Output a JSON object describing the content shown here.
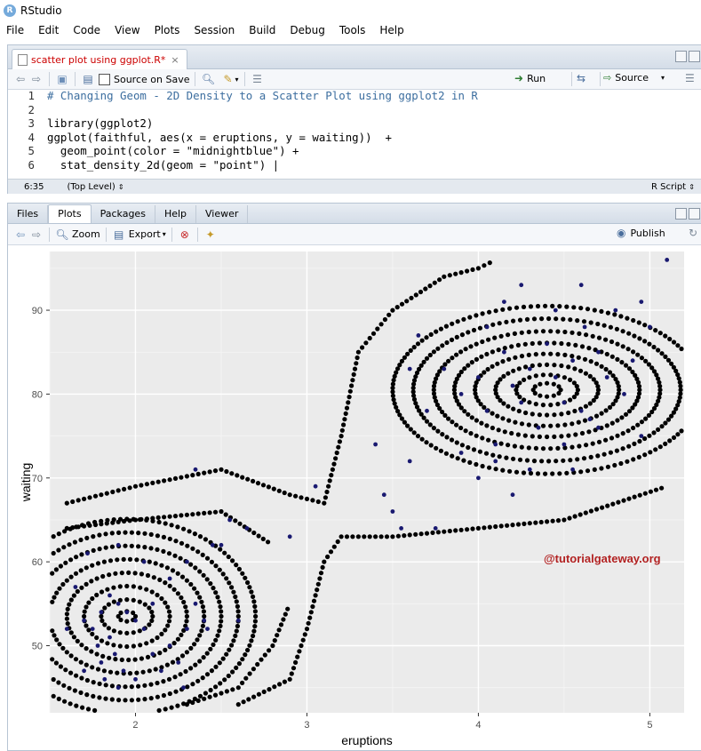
{
  "app": {
    "title": "RStudio"
  },
  "menu": [
    "File",
    "Edit",
    "Code",
    "View",
    "Plots",
    "Session",
    "Build",
    "Debug",
    "Tools",
    "Help"
  ],
  "editor": {
    "tab_label": "scatter plot using ggplot.R*",
    "source_on_save_label": "Source on Save",
    "run_label": "Run",
    "source_label": "Source",
    "lines": [
      {
        "num": "1",
        "text": "# Changing Geom - 2D Density to a Scatter Plot using ggplot2 in R",
        "comment": true
      },
      {
        "num": "2",
        "text": "",
        "comment": false
      },
      {
        "num": "3",
        "text": "library(ggplot2)",
        "comment": false
      },
      {
        "num": "4",
        "text": "ggplot(faithful, aes(x = eruptions, y = waiting))  +",
        "comment": false
      },
      {
        "num": "5",
        "text": "  geom_point(color = \"midnightblue\") +",
        "comment": false
      },
      {
        "num": "6",
        "text": "  stat_density_2d(geom = \"point\") |",
        "comment": false
      }
    ],
    "status_position": "6:35",
    "status_scope": "(Top Level)",
    "status_type": "R Script"
  },
  "plots_pane": {
    "tabs": [
      "Files",
      "Plots",
      "Packages",
      "Help",
      "Viewer"
    ],
    "active_tab": "Plots",
    "zoom_label": "Zoom",
    "export_label": "Export",
    "publish_label": "Publish"
  },
  "chart_data": {
    "type": "scatter",
    "xlabel": "eruptions",
    "ylabel": "waiting",
    "xlim": [
      1.5,
      5.2
    ],
    "ylim": [
      42,
      97
    ],
    "xticks": [
      "2",
      "3",
      "4",
      "5"
    ],
    "yticks": [
      "50",
      "60",
      "70",
      "80",
      "90"
    ],
    "panel_background": "#ebebeb",
    "grid": true,
    "point_color": "#191970",
    "density_point_color": "#000000",
    "watermark": "@tutorialgateway.org",
    "watermark_color": "#b22222",
    "density_contours": [
      {
        "cx": 1.95,
        "cy": 53.5,
        "rx": [
          0.05,
          0.15,
          0.25,
          0.35,
          0.45,
          0.55,
          0.65,
          0.75
        ],
        "ry": [
          0.6,
          2.0,
          3.6,
          5.2,
          6.8,
          8.4,
          10.0,
          11.6
        ]
      },
      {
        "cx": 4.4,
        "cy": 80.5,
        "rx": [
          0.08,
          0.18,
          0.3,
          0.42,
          0.54,
          0.66,
          0.78,
          0.9
        ],
        "ry": [
          0.8,
          1.8,
          3.0,
          4.3,
          5.6,
          7.0,
          8.5,
          10.0
        ]
      }
    ],
    "bridge_contours": [
      {
        "x": [
          1.6,
          2.0,
          2.5,
          2.9,
          3.1,
          3.2,
          3.3,
          3.5,
          3.8,
          4.0,
          4.1
        ],
        "y": [
          67,
          69,
          71,
          68,
          67,
          75,
          85,
          90,
          94,
          95,
          96
        ]
      },
      {
        "x": [
          1.6,
          2.0,
          2.5,
          2.8
        ],
        "y": [
          64,
          65,
          66,
          62
        ]
      },
      {
        "x": [
          2.6,
          2.9,
          3.0,
          3.1,
          3.2,
          3.5,
          4.0,
          4.5,
          5.1
        ],
        "y": [
          43,
          46,
          52,
          60,
          63,
          63,
          64,
          65,
          69
        ]
      },
      {
        "x": [
          2.3,
          2.6,
          2.8,
          2.9
        ],
        "y": [
          43,
          45,
          50,
          55
        ]
      }
    ],
    "points": [
      [
        1.7,
        53
      ],
      [
        1.8,
        54
      ],
      [
        1.75,
        52
      ],
      [
        1.85,
        51
      ],
      [
        1.9,
        55
      ],
      [
        1.95,
        54
      ],
      [
        2.0,
        53
      ],
      [
        1.85,
        56
      ],
      [
        1.8,
        48
      ],
      [
        1.7,
        47
      ],
      [
        1.78,
        50
      ],
      [
        1.88,
        49
      ],
      [
        1.93,
        47
      ],
      [
        2.05,
        52
      ],
      [
        2.1,
        55
      ],
      [
        1.6,
        52
      ],
      [
        1.65,
        57
      ],
      [
        1.72,
        61
      ],
      [
        1.9,
        62
      ],
      [
        2.05,
        60
      ],
      [
        2.2,
        58
      ],
      [
        2.3,
        60
      ],
      [
        2.35,
        55
      ],
      [
        2.4,
        53
      ],
      [
        2.2,
        50
      ],
      [
        2.25,
        48
      ],
      [
        2.3,
        52
      ],
      [
        2.45,
        62
      ],
      [
        2.5,
        62
      ],
      [
        2.6,
        53
      ],
      [
        2.35,
        71
      ],
      [
        2.55,
        65
      ],
      [
        2.65,
        64
      ],
      [
        2.42,
        52
      ],
      [
        2.0,
        46
      ],
      [
        1.82,
        46
      ],
      [
        1.9,
        45
      ],
      [
        2.28,
        45
      ],
      [
        2.15,
        47
      ],
      [
        2.1,
        49
      ],
      [
        3.05,
        69
      ],
      [
        2.9,
        63
      ],
      [
        3.4,
        74
      ],
      [
        3.45,
        68
      ],
      [
        3.5,
        66
      ],
      [
        3.55,
        64
      ],
      [
        3.6,
        72
      ],
      [
        3.7,
        78
      ],
      [
        3.8,
        83
      ],
      [
        3.9,
        80
      ],
      [
        4.0,
        82
      ],
      [
        4.05,
        78
      ],
      [
        4.1,
        74
      ],
      [
        4.15,
        85
      ],
      [
        4.2,
        81
      ],
      [
        4.25,
        79
      ],
      [
        4.3,
        83
      ],
      [
        4.35,
        76
      ],
      [
        4.4,
        86
      ],
      [
        4.45,
        82
      ],
      [
        4.5,
        79
      ],
      [
        4.55,
        84
      ],
      [
        4.6,
        78
      ],
      [
        4.62,
        88
      ],
      [
        4.65,
        77
      ],
      [
        4.7,
        85
      ],
      [
        4.75,
        82
      ],
      [
        4.8,
        90
      ],
      [
        4.85,
        80
      ],
      [
        4.9,
        84
      ],
      [
        4.95,
        75
      ],
      [
        5.0,
        88
      ],
      [
        4.15,
        91
      ],
      [
        4.25,
        93
      ],
      [
        4.6,
        93
      ],
      [
        4.1,
        72
      ],
      [
        4.0,
        70
      ],
      [
        3.9,
        73
      ],
      [
        4.3,
        71
      ],
      [
        4.45,
        90
      ],
      [
        3.75,
        64
      ],
      [
        4.2,
        68
      ],
      [
        4.5,
        74
      ],
      [
        4.7,
        76
      ],
      [
        4.55,
        71
      ],
      [
        3.6,
        83
      ],
      [
        3.65,
        87
      ],
      [
        4.05,
        88
      ],
      [
        5.1,
        96
      ],
      [
        4.95,
        91
      ]
    ]
  }
}
